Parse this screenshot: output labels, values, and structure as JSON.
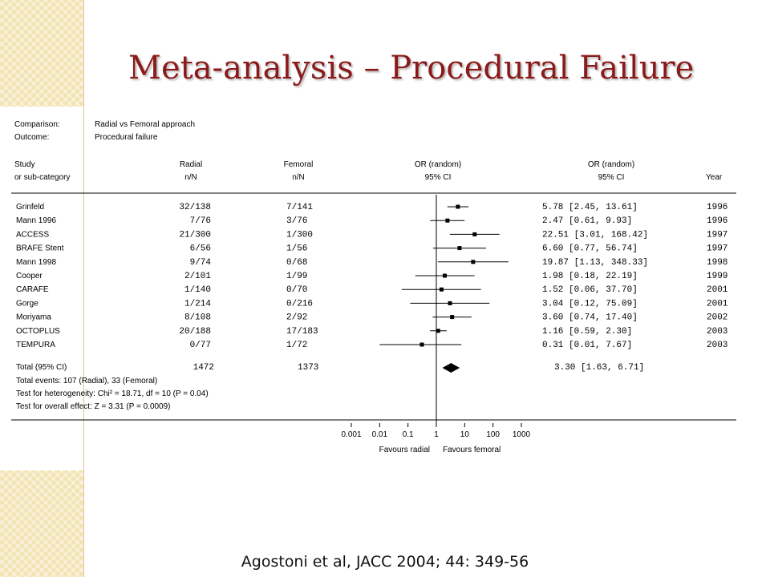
{
  "title": "Meta-analysis – Procedural Failure",
  "citation": "Agostoni et al, JACC 2004; 44: 349-56",
  "header": {
    "comparison_label": "Comparison:",
    "comparison_value": "Radial vs Femoral approach",
    "outcome_label": "Outcome:",
    "outcome_value": "Procedural failure"
  },
  "columns": {
    "study": [
      "Study",
      "or sub-category"
    ],
    "radial": [
      "Radial",
      "n/N"
    ],
    "femoral": [
      "Femoral",
      "n/N"
    ],
    "plot": [
      "OR (random)",
      "95% CI"
    ],
    "or_text": [
      "OR (random)",
      "95% CI"
    ],
    "year": [
      "",
      "Year"
    ]
  },
  "chart_data": {
    "type": "forest",
    "scale": "log",
    "xlim": [
      0.001,
      1000
    ],
    "xticks": [
      "0.001",
      "0.01",
      "0.1",
      "1",
      "10",
      "100",
      "1000"
    ],
    "xtick_values": [
      0.001,
      0.01,
      0.1,
      1,
      10,
      100,
      1000
    ],
    "reference_line": 1,
    "axis_left_caption": "Favours radial",
    "axis_right_caption": "Favours femoral",
    "studies": [
      {
        "name": "Grinfeld",
        "radial": "32/138",
        "femoral": "7/141",
        "or": 5.78,
        "lo": 2.45,
        "hi": 13.61,
        "or_text": "5.78 [2.45, 13.61]",
        "year": "1996"
      },
      {
        "name": "Mann 1996",
        "radial": "7/76",
        "femoral": "3/76",
        "or": 2.47,
        "lo": 0.61,
        "hi": 9.93,
        "or_text": "2.47 [0.61, 9.93]",
        "year": "1996"
      },
      {
        "name": "ACCESS",
        "radial": "21/300",
        "femoral": "1/300",
        "or": 22.51,
        "lo": 3.01,
        "hi": 168.42,
        "or_text": "22.51 [3.01, 168.42]",
        "year": "1997"
      },
      {
        "name": "BRAFE Stent",
        "radial": "6/56",
        "femoral": "1/56",
        "or": 6.6,
        "lo": 0.77,
        "hi": 56.74,
        "or_text": "6.60 [0.77, 56.74]",
        "year": "1997"
      },
      {
        "name": "Mann 1998",
        "radial": "9/74",
        "femoral": "0/68",
        "or": 19.87,
        "lo": 1.13,
        "hi": 348.33,
        "or_text": "19.87 [1.13, 348.33]",
        "year": "1998"
      },
      {
        "name": "Cooper",
        "radial": "2/101",
        "femoral": "1/99",
        "or": 1.98,
        "lo": 0.18,
        "hi": 22.19,
        "or_text": "1.98 [0.18, 22.19]",
        "year": "1999"
      },
      {
        "name": "CARAFE",
        "radial": "1/140",
        "femoral": "0/70",
        "or": 1.52,
        "lo": 0.06,
        "hi": 37.7,
        "or_text": "1.52 [0.06, 37.70]",
        "year": "2001"
      },
      {
        "name": "Gorge",
        "radial": "1/214",
        "femoral": "0/216",
        "or": 3.04,
        "lo": 0.12,
        "hi": 75.09,
        "or_text": "3.04 [0.12, 75.09]",
        "year": "2001"
      },
      {
        "name": "Moriyama",
        "radial": "8/108",
        "femoral": "2/92",
        "or": 3.6,
        "lo": 0.74,
        "hi": 17.4,
        "or_text": "3.60 [0.74, 17.40]",
        "year": "2002"
      },
      {
        "name": "OCTOPLUS",
        "radial": "20/188",
        "femoral": "17/183",
        "or": 1.16,
        "lo": 0.59,
        "hi": 2.3,
        "or_text": "1.16 [0.59, 2.30]",
        "year": "2003"
      },
      {
        "name": "TEMPURA",
        "radial": "0/77",
        "femoral": "1/72",
        "or": 0.31,
        "lo": 0.01,
        "hi": 7.67,
        "or_text": "0.31 [0.01, 7.67]",
        "year": "2003"
      }
    ],
    "total": {
      "label": "Total (95% CI)",
      "radial": "1472",
      "femoral": "1373",
      "or": 3.3,
      "lo": 1.63,
      "hi": 6.71,
      "or_text": "3.30 [1.63, 6.71]"
    },
    "notes": [
      "Total events: 107 (Radial), 33 (Femoral)",
      "Test for heterogeneity: Chi² = 18.71, df = 10 (P = 0.04)",
      "Test for overall effect: Z = 3.31 (P = 0.0009)"
    ]
  },
  "colors": {
    "title": "#8b1a1a",
    "decor": "#f3e3b2",
    "ink": "#000000"
  }
}
